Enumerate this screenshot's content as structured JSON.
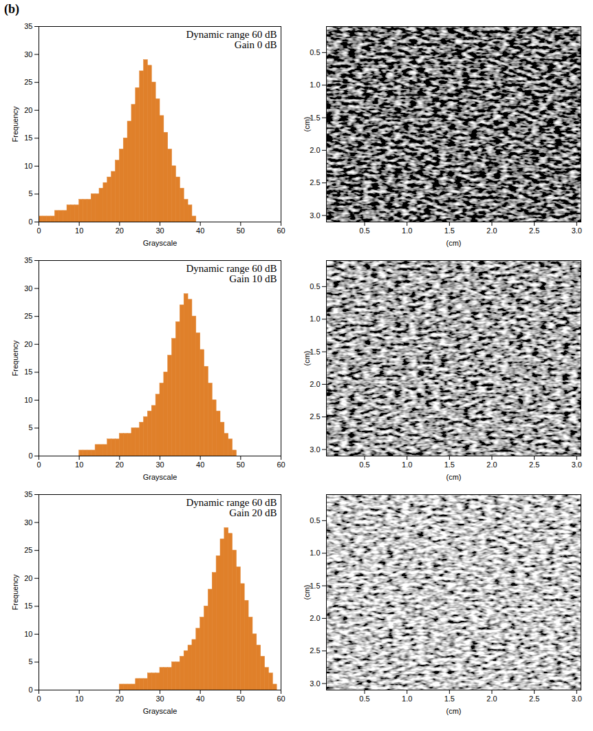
{
  "figure_label": "(b)",
  "chart_data": [
    {
      "type": "histogram",
      "annotations": [
        "Dynamic range 60 dB",
        "Gain 0 dB"
      ],
      "x_label": "Grayscale",
      "y_label": "Frequency",
      "color": "#e0802a",
      "bins": [
        0,
        1,
        2,
        3,
        4,
        5,
        6,
        7,
        8,
        9,
        10,
        11,
        12,
        13,
        14,
        15,
        16,
        17,
        18,
        19,
        20,
        21,
        22,
        23,
        24,
        25,
        26,
        27,
        28,
        29,
        30,
        31,
        32,
        33,
        34,
        35,
        36,
        37,
        38,
        39,
        40,
        41,
        42,
        43,
        44,
        45,
        46,
        47,
        48,
        49,
        50,
        51,
        52,
        53,
        54,
        55,
        56,
        57,
        58,
        59,
        60
      ],
      "values": [
        1,
        1,
        1,
        1,
        2,
        2,
        2,
        3,
        3,
        3,
        4,
        4,
        4,
        5,
        5,
        6,
        7,
        8,
        9,
        11,
        13,
        15,
        18,
        21,
        24,
        27,
        29,
        28,
        25,
        22,
        19,
        16,
        13,
        10,
        8,
        6,
        4,
        3,
        1,
        0,
        0,
        0,
        0,
        0,
        0,
        0,
        0,
        0,
        0,
        0,
        0,
        0,
        0,
        0,
        0,
        0,
        0,
        0,
        0,
        0
      ],
      "xlim": [
        0,
        60
      ],
      "xticks": [
        0,
        10,
        20,
        30,
        40,
        50,
        60
      ],
      "ylim": [
        0,
        35
      ],
      "yticks": [
        0,
        5,
        10,
        15,
        20,
        25,
        30,
        35
      ]
    },
    {
      "type": "image",
      "x_label": "(cm)",
      "y_label": "(cm)",
      "xlim": [
        0.05,
        3.05
      ],
      "xticks": [
        0.5,
        1,
        1.5,
        2,
        2.5,
        3
      ],
      "ylim": [
        3.1,
        0.1
      ],
      "yticks": [
        0.5,
        1,
        1.5,
        2,
        2.5,
        3
      ]
    },
    {
      "type": "histogram",
      "annotations": [
        "Dynamic range 60 dB",
        "Gain 10 dB"
      ],
      "x_label": "Grayscale",
      "y_label": "Frequency",
      "color": "#e0802a",
      "bins": [
        0,
        1,
        2,
        3,
        4,
        5,
        6,
        7,
        8,
        9,
        10,
        11,
        12,
        13,
        14,
        15,
        16,
        17,
        18,
        19,
        20,
        21,
        22,
        23,
        24,
        25,
        26,
        27,
        28,
        29,
        30,
        31,
        32,
        33,
        34,
        35,
        36,
        37,
        38,
        39,
        40,
        41,
        42,
        43,
        44,
        45,
        46,
        47,
        48,
        49,
        50,
        51,
        52,
        53,
        54,
        55,
        56,
        57,
        58,
        59,
        60
      ],
      "values": [
        0,
        0,
        0,
        0,
        0,
        0,
        0,
        0,
        0,
        0,
        1,
        1,
        1,
        1,
        2,
        2,
        2,
        3,
        3,
        3,
        4,
        4,
        4,
        5,
        5,
        6,
        7,
        8,
        9,
        11,
        13,
        15,
        18,
        21,
        24,
        27,
        29,
        28,
        25,
        22,
        19,
        16,
        13,
        10,
        8,
        6,
        4,
        3,
        1,
        0,
        0,
        0,
        0,
        0,
        0,
        0,
        0,
        0,
        0,
        0
      ],
      "xlim": [
        0,
        60
      ],
      "xticks": [
        0,
        10,
        20,
        30,
        40,
        50,
        60
      ],
      "ylim": [
        0,
        35
      ],
      "yticks": [
        0,
        5,
        10,
        15,
        20,
        25,
        30,
        35
      ]
    },
    {
      "type": "image",
      "x_label": "(cm)",
      "y_label": "(cm)",
      "xlim": [
        0.05,
        3.05
      ],
      "xticks": [
        0.5,
        1,
        1.5,
        2,
        2.5,
        3
      ],
      "ylim": [
        3.1,
        0.1
      ],
      "yticks": [
        0.5,
        1,
        1.5,
        2,
        2.5,
        3
      ]
    },
    {
      "type": "histogram",
      "annotations": [
        "Dynamic range 60 dB",
        "Gain 20 dB"
      ],
      "x_label": "Grayscale",
      "y_label": "Frequency",
      "color": "#e0802a",
      "bins": [
        0,
        1,
        2,
        3,
        4,
        5,
        6,
        7,
        8,
        9,
        10,
        11,
        12,
        13,
        14,
        15,
        16,
        17,
        18,
        19,
        20,
        21,
        22,
        23,
        24,
        25,
        26,
        27,
        28,
        29,
        30,
        31,
        32,
        33,
        34,
        35,
        36,
        37,
        38,
        39,
        40,
        41,
        42,
        43,
        44,
        45,
        46,
        47,
        48,
        49,
        50,
        51,
        52,
        53,
        54,
        55,
        56,
        57,
        58,
        59,
        60
      ],
      "values": [
        0,
        0,
        0,
        0,
        0,
        0,
        0,
        0,
        0,
        0,
        0,
        0,
        0,
        0,
        0,
        0,
        0,
        0,
        0,
        0,
        1,
        1,
        1,
        1,
        2,
        2,
        2,
        3,
        3,
        3,
        4,
        4,
        4,
        5,
        5,
        6,
        7,
        8,
        9,
        11,
        13,
        15,
        18,
        21,
        24,
        27,
        29,
        28,
        25,
        22,
        19,
        16,
        13,
        10,
        8,
        6,
        4,
        3,
        1,
        0
      ],
      "xlim": [
        0,
        60
      ],
      "xticks": [
        0,
        10,
        20,
        30,
        40,
        50,
        60
      ],
      "ylim": [
        0,
        35
      ],
      "yticks": [
        0,
        5,
        10,
        15,
        20,
        25,
        30,
        35
      ]
    },
    {
      "type": "image",
      "x_label": "(cm)",
      "y_label": "(cm)",
      "xlim": [
        0.05,
        3.05
      ],
      "xticks": [
        0.5,
        1,
        1.5,
        2,
        2.5,
        3
      ],
      "ylim": [
        3.1,
        0.1
      ],
      "yticks": [
        0.5,
        1,
        1.5,
        2,
        2.5,
        3
      ]
    }
  ]
}
